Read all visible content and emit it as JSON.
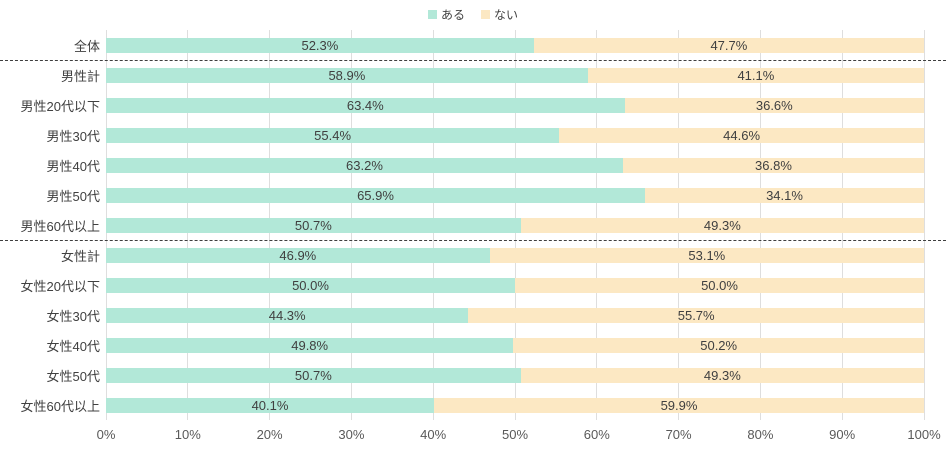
{
  "legend": {
    "items": [
      {
        "label": "ある",
        "color": "#b2e8d8"
      },
      {
        "label": "ない",
        "color": "#fce8c3"
      }
    ]
  },
  "chart_data": {
    "type": "bar",
    "subtype": "stacked-horizontal",
    "title": "",
    "categories": [
      "全体",
      "男性計",
      "男性20代以下",
      "男性30代",
      "男性40代",
      "男性50代",
      "男性60代以上",
      "女性計",
      "女性20代以下",
      "女性30代",
      "女性40代",
      "女性50代",
      "女性60代以上"
    ],
    "series": [
      {
        "name": "ある",
        "color": "#b2e8d8",
        "values": [
          52.3,
          58.9,
          63.4,
          55.4,
          63.2,
          65.9,
          50.7,
          46.9,
          50.0,
          44.3,
          49.8,
          50.7,
          40.1
        ]
      },
      {
        "name": "ない",
        "color": "#fce8c3",
        "values": [
          47.7,
          41.1,
          36.6,
          44.6,
          36.8,
          34.1,
          49.3,
          53.1,
          50.0,
          55.7,
          50.2,
          49.3,
          59.9
        ]
      }
    ],
    "x_ticks": [
      "0%",
      "10%",
      "20%",
      "30%",
      "40%",
      "50%",
      "60%",
      "70%",
      "80%",
      "90%",
      "100%"
    ],
    "xlim": [
      0,
      100
    ],
    "value_suffix": "%",
    "value_decimals": 1,
    "separators_after_row_indexes": [
      0,
      6
    ],
    "grid": true,
    "legend_position": "top-center",
    "colors": {
      "gridline": "#dedede",
      "separator": "#3f3f3f",
      "label_text": "#404040",
      "tick_text": "#595959"
    }
  }
}
